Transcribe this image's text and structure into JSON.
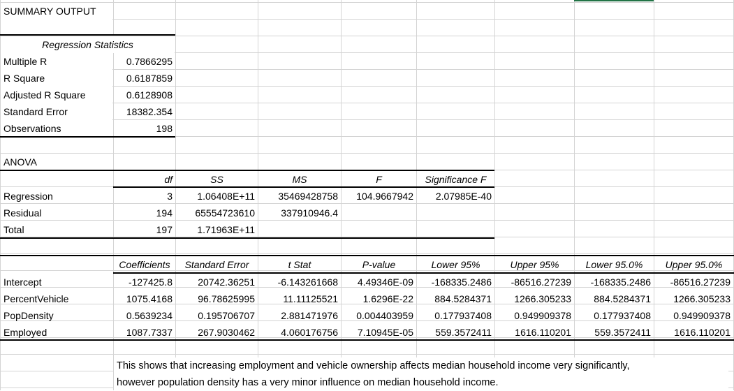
{
  "summary_title": "SUMMARY OUTPUT",
  "regression_statistics": {
    "header": "Regression Statistics",
    "rows": [
      {
        "label": "Multiple R",
        "value": "0.7866295"
      },
      {
        "label": "R Square",
        "value": "0.6187859"
      },
      {
        "label": "Adjusted R Square",
        "value": "0.6128908"
      },
      {
        "label": "Standard Error",
        "value": "18382.354"
      },
      {
        "label": "Observations",
        "value": "198"
      }
    ]
  },
  "anova": {
    "title": "ANOVA",
    "headers": [
      "df",
      "SS",
      "MS",
      "F",
      "Significance F"
    ],
    "rows": [
      {
        "label": "Regression",
        "df": "3",
        "ss": "1.06408E+11",
        "ms": "35469428758",
        "f": "104.9667942",
        "sig_f": "2.07985E-40"
      },
      {
        "label": "Residual",
        "df": "194",
        "ss": "65554723610",
        "ms": "337910946.4",
        "f": "",
        "sig_f": ""
      },
      {
        "label": "Total",
        "df": "197",
        "ss": "1.71963E+11",
        "ms": "",
        "f": "",
        "sig_f": ""
      }
    ]
  },
  "coefficients": {
    "headers": [
      "Coefficients",
      "Standard Error",
      "t Stat",
      "P-value",
      "Lower 95%",
      "Upper 95%",
      "Lower 95.0%",
      "Upper 95.0%"
    ],
    "rows": [
      {
        "label": "Intercept",
        "values": [
          "-127425.8",
          "20742.36251",
          "-6.143261668",
          "4.49346E-09",
          "-168335.2486",
          "-86516.27239",
          "-168335.2486",
          "-86516.27239"
        ]
      },
      {
        "label": "PercentVehicle",
        "values": [
          "1075.4168",
          "96.78625995",
          "11.11125521",
          "1.6296E-22",
          "884.5284371",
          "1266.305233",
          "884.5284371",
          "1266.305233"
        ]
      },
      {
        "label": "PopDensity",
        "values": [
          "0.5639234",
          "0.195706707",
          "2.881471976",
          "0.004403959",
          "0.177937408",
          "0.949909378",
          "0.177937408",
          "0.949909378"
        ]
      },
      {
        "label": "Employed",
        "values": [
          "1087.7337",
          "267.9030462",
          "4.060176756",
          "7.10945E-05",
          "559.3572411",
          "1616.110201",
          "559.3572411",
          "1616.110201"
        ]
      }
    ]
  },
  "note": {
    "line1": "This shows that increasing employment and vehicle ownership affects median household income very significantly,",
    "line2": "however population density has a very minor influence on median household income."
  }
}
